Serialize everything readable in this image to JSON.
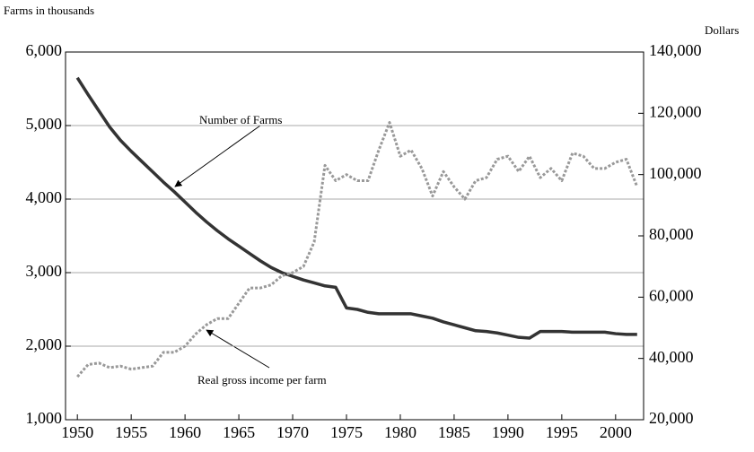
{
  "chart_data": {
    "type": "line",
    "ylabel": "Farms in thousands",
    "y2label": "Dollars",
    "annotations": [
      "Number of Farms",
      "Real gross income per farm"
    ],
    "x": [
      1950,
      1951,
      1952,
      1953,
      1954,
      1955,
      1956,
      1957,
      1958,
      1959,
      1960,
      1961,
      1962,
      1963,
      1964,
      1965,
      1966,
      1967,
      1968,
      1969,
      1970,
      1971,
      1972,
      1973,
      1974,
      1975,
      1976,
      1977,
      1978,
      1979,
      1980,
      1981,
      1982,
      1983,
      1984,
      1985,
      1986,
      1987,
      1988,
      1989,
      1990,
      1991,
      1992,
      1993,
      1994,
      1995,
      1996,
      1997,
      1998,
      1999,
      2000,
      2001,
      2002
    ],
    "xlim": [
      1948.9,
      2002.6
    ],
    "xticks": [
      1950,
      1955,
      1960,
      1965,
      1970,
      1975,
      1980,
      1985,
      1990,
      1995,
      2000
    ],
    "ylim": [
      1000,
      6000
    ],
    "yticks": [
      {
        "value": 1000,
        "label": "1,000"
      },
      {
        "value": 2000,
        "label": "2,000"
      },
      {
        "value": 3000,
        "label": "3,000"
      },
      {
        "value": 4000,
        "label": "4,000"
      },
      {
        "value": 5000,
        "label": "5,000"
      },
      {
        "value": 6000,
        "label": "6,000"
      }
    ],
    "y2lim": [
      20000,
      140000
    ],
    "y2ticks": [
      {
        "value": 20000,
        "label": "20,000"
      },
      {
        "value": 40000,
        "label": "40,000"
      },
      {
        "value": 60000,
        "label": "60,000"
      },
      {
        "value": 80000,
        "label": "80,000"
      },
      {
        "value": 100000,
        "label": "100,000"
      },
      {
        "value": 120000,
        "label": "120,000"
      },
      {
        "value": 140000,
        "label": "140,000"
      }
    ],
    "grid": true,
    "series": [
      {
        "name": "Number of Farms",
        "color": "#333333",
        "style": "solid",
        "values": [
          5650,
          5420,
          5200,
          4980,
          4800,
          4650,
          4510,
          4370,
          4230,
          4100,
          3960,
          3820,
          3690,
          3570,
          3460,
          3360,
          3260,
          3160,
          3070,
          3000,
          2950,
          2900,
          2860,
          2820,
          2800,
          2520,
          2500,
          2460,
          2440,
          2440,
          2440,
          2440,
          2410,
          2380,
          2330,
          2290,
          2250,
          2210,
          2200,
          2180,
          2150,
          2120,
          2110,
          2200,
          2200,
          2200,
          2190,
          2190,
          2190,
          2190,
          2170,
          2160,
          2160
        ]
      },
      {
        "name": "Real gross income per farm",
        "color": "#999999",
        "style": "dotted",
        "axis": "y2",
        "values": [
          34000,
          38000,
          38500,
          37000,
          37500,
          36500,
          37000,
          37500,
          42000,
          42000,
          44000,
          48000,
          51000,
          53000,
          53000,
          58000,
          63000,
          63000,
          64000,
          67000,
          68000,
          70000,
          78000,
          103000,
          98000,
          100000,
          98000,
          98000,
          108000,
          117000,
          106000,
          108000,
          102000,
          93000,
          101000,
          96000,
          92000,
          98000,
          99000,
          105000,
          106000,
          101000,
          106000,
          99000,
          102000,
          98000,
          107000,
          106000,
          102000,
          102000,
          104000,
          105000,
          96000
        ]
      }
    ]
  }
}
